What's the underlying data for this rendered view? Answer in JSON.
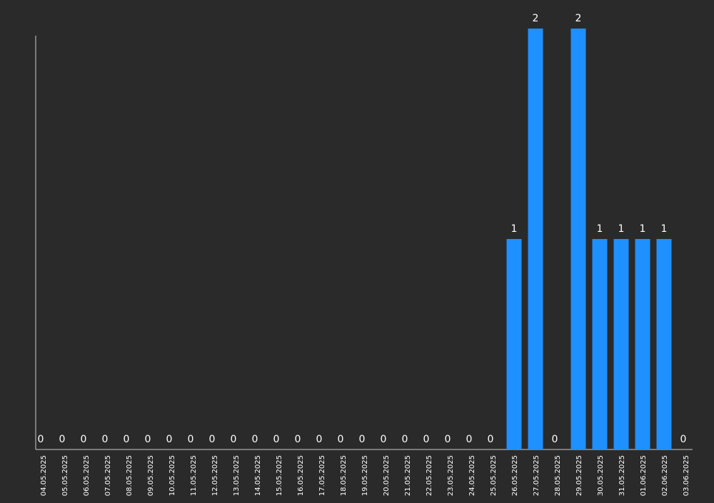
{
  "chart_data": {
    "type": "bar",
    "categories": [
      "04.05.2025",
      "05.05.2025",
      "06.05.2025",
      "07.05.2025",
      "08.05.2025",
      "09.05.2025",
      "10.05.2025",
      "11.05.2025",
      "12.05.2025",
      "13.05.2025",
      "14.05.2025",
      "15.05.2025",
      "16.05.2025",
      "17.05.2025",
      "18.05.2025",
      "19.05.2025",
      "20.05.2025",
      "21.05.2025",
      "22.05.2025",
      "23.05.2025",
      "24.05.2025",
      "25.05.2025",
      "26.05.2025",
      "27.05.2025",
      "28.05.2025",
      "29.05.2025",
      "30.05.2025",
      "31.05.2025",
      "01.06.2025",
      "02.06.2025",
      "03.06.2025"
    ],
    "values": [
      0,
      0,
      0,
      0,
      0,
      0,
      0,
      0,
      0,
      0,
      0,
      0,
      0,
      0,
      0,
      0,
      0,
      0,
      0,
      0,
      0,
      0,
      1,
      2,
      0,
      2,
      1,
      1,
      1,
      1,
      0
    ],
    "ylim": [
      0,
      2
    ],
    "grid": false,
    "bar_color": "#1e90ff",
    "background_color": "#2a2a2a",
    "axis_color": "#cccccc",
    "text_color": "#ffffff"
  }
}
